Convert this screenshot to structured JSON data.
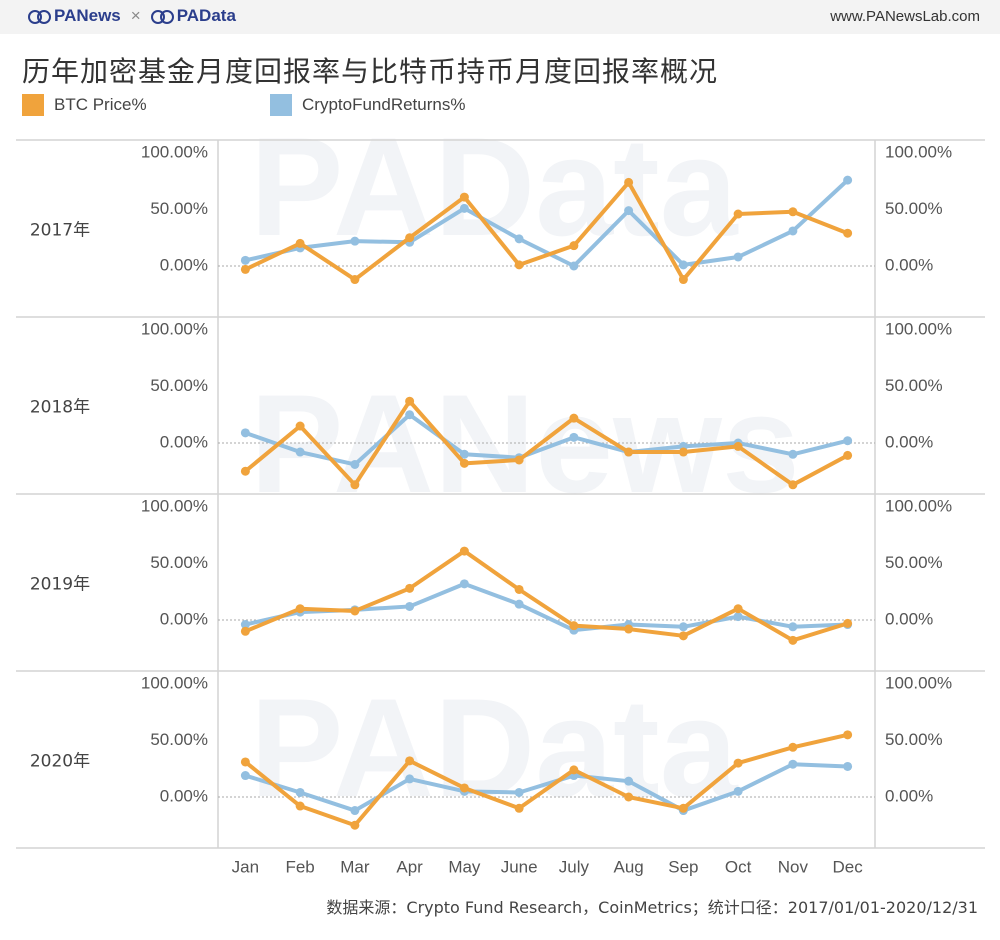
{
  "header": {
    "brand_left": "PANews",
    "brand_times": "×",
    "brand_right": "PAData",
    "site": "www.PANewsLab.com"
  },
  "title": "历年加密基金月度回报率与比特币持币月度回报率概况",
  "source": "数据来源：Crypto Fund Research，CoinMetrics；统计口径：2017/01/01-2020/12/31",
  "watermarks": [
    "PAData",
    "PANews",
    "PAData"
  ],
  "colors": {
    "btc": "#f0a33c",
    "fund": "#93bfe0",
    "grid": "#d4d4d4",
    "zero": "#aaaaaa"
  },
  "chart_data": {
    "type": "line",
    "categories": [
      "Jan",
      "Feb",
      "Mar",
      "Apr",
      "May",
      "June",
      "July",
      "Aug",
      "Sep",
      "Oct",
      "Nov",
      "Dec"
    ],
    "yticks": [
      "100.00%",
      "50.00%",
      "0.00%"
    ],
    "ylim": [
      -30,
      100
    ],
    "legend_position": "top-left",
    "panels": [
      {
        "label": "2017年",
        "series": [
          {
            "name": "BTC Price%",
            "values": [
              -3,
              20,
              -12,
              25,
              61,
              1,
              18,
              74,
              -12,
              46,
              48,
              29
            ]
          },
          {
            "name": "CryptoFundReturns%",
            "values": [
              5,
              16,
              22,
              21,
              51,
              24,
              0,
              49,
              1,
              8,
              31,
              76
            ]
          }
        ]
      },
      {
        "label": "2018年",
        "series": [
          {
            "name": "BTC Price%",
            "values": [
              -25,
              15,
              -37,
              37,
              -18,
              -15,
              22,
              -8,
              -8,
              -3,
              -37,
              -11
            ]
          },
          {
            "name": "CryptoFundReturns%",
            "values": [
              9,
              -8,
              -19,
              25,
              -10,
              -13,
              5,
              -8,
              -3,
              0,
              -10,
              2
            ]
          }
        ]
      },
      {
        "label": "2019年",
        "series": [
          {
            "name": "BTC Price%",
            "values": [
              -10,
              10,
              8,
              28,
              61,
              27,
              -5,
              -8,
              -14,
              10,
              -18,
              -3
            ]
          },
          {
            "name": "CryptoFundReturns%",
            "values": [
              -4,
              7,
              9,
              12,
              32,
              14,
              -9,
              -4,
              -6,
              3,
              -6,
              -4
            ]
          }
        ]
      },
      {
        "label": "2020年",
        "series": [
          {
            "name": "BTC Price%",
            "values": [
              31,
              -8,
              -25,
              32,
              8,
              -10,
              24,
              0,
              -10,
              30,
              44,
              55
            ]
          },
          {
            "name": "CryptoFundReturns%",
            "values": [
              19,
              4,
              -12,
              16,
              5,
              4,
              19,
              14,
              -12,
              5,
              29,
              27
            ]
          }
        ]
      }
    ]
  }
}
